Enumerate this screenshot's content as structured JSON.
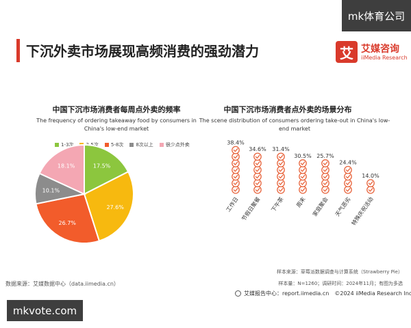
{
  "watermarks": {
    "top_right": "mk体育公司",
    "bottom_left": "mkvote.com"
  },
  "header": {
    "title": "下沉外卖市场展现高频消费的强劲潜力"
  },
  "logo": {
    "mark": "艾",
    "name_cn": "艾媒咨询",
    "name_en": "iiMedia Research"
  },
  "colors": {
    "accent": "#d93a2b"
  },
  "chart_data": [
    {
      "type": "pie",
      "title": "中国下沉市场消费者每周点外卖的频率",
      "subtitle": "The frequency of ordering takeaway food by consumers in China's low-end market",
      "legend_position": "top",
      "categories": [
        "1-3次",
        "3-5次",
        "5-8次",
        "8次以上",
        "很少点外卖"
      ],
      "values": [
        17.5,
        27.6,
        26.7,
        10.1,
        18.1
      ],
      "labels": [
        "17.5%",
        "27.6%",
        "26.7%",
        "10.1%",
        "18.1%"
      ],
      "colors": [
        "#8cc63e",
        "#f7b90f",
        "#f25c2b",
        "#8c8c8c",
        "#f4a7b3"
      ]
    },
    {
      "type": "bar",
      "title": "中国下沉市场消费者点外卖的场景分布",
      "subtitle": "The scene distribution of consumers ordering take-out in China's low-end market",
      "categories": [
        "工作日",
        "节假日聚餐",
        "下午茶",
        "周末",
        "家庭聚会",
        "天气恶劣",
        "特殊庆祝活动"
      ],
      "values": [
        38.4,
        34.6,
        31.4,
        30.5,
        25.7,
        24.4,
        14.0
      ],
      "labels": [
        "38.4%",
        "34.6%",
        "31.4%",
        "30.5%",
        "25.7%",
        "24.4%",
        "14.0%"
      ],
      "ylim": [
        0,
        40
      ],
      "icon": "checkmark-circle-icon",
      "colors": [
        "#e8643c"
      ]
    }
  ],
  "source": {
    "left": "数据来源：艾媒数据中心（data.iimedia.cn）"
  },
  "notes": {
    "sample_source": "样本来源：草莓派数据调查与计算系统（Strawberry Pie）",
    "sample_size": "样本量：N=1260；调研时间：2024年11月；有图为多选"
  },
  "footer": {
    "text": "艾媒报告中心：report.iimedia.cn　©2024  iiMedia Research  Inc"
  }
}
